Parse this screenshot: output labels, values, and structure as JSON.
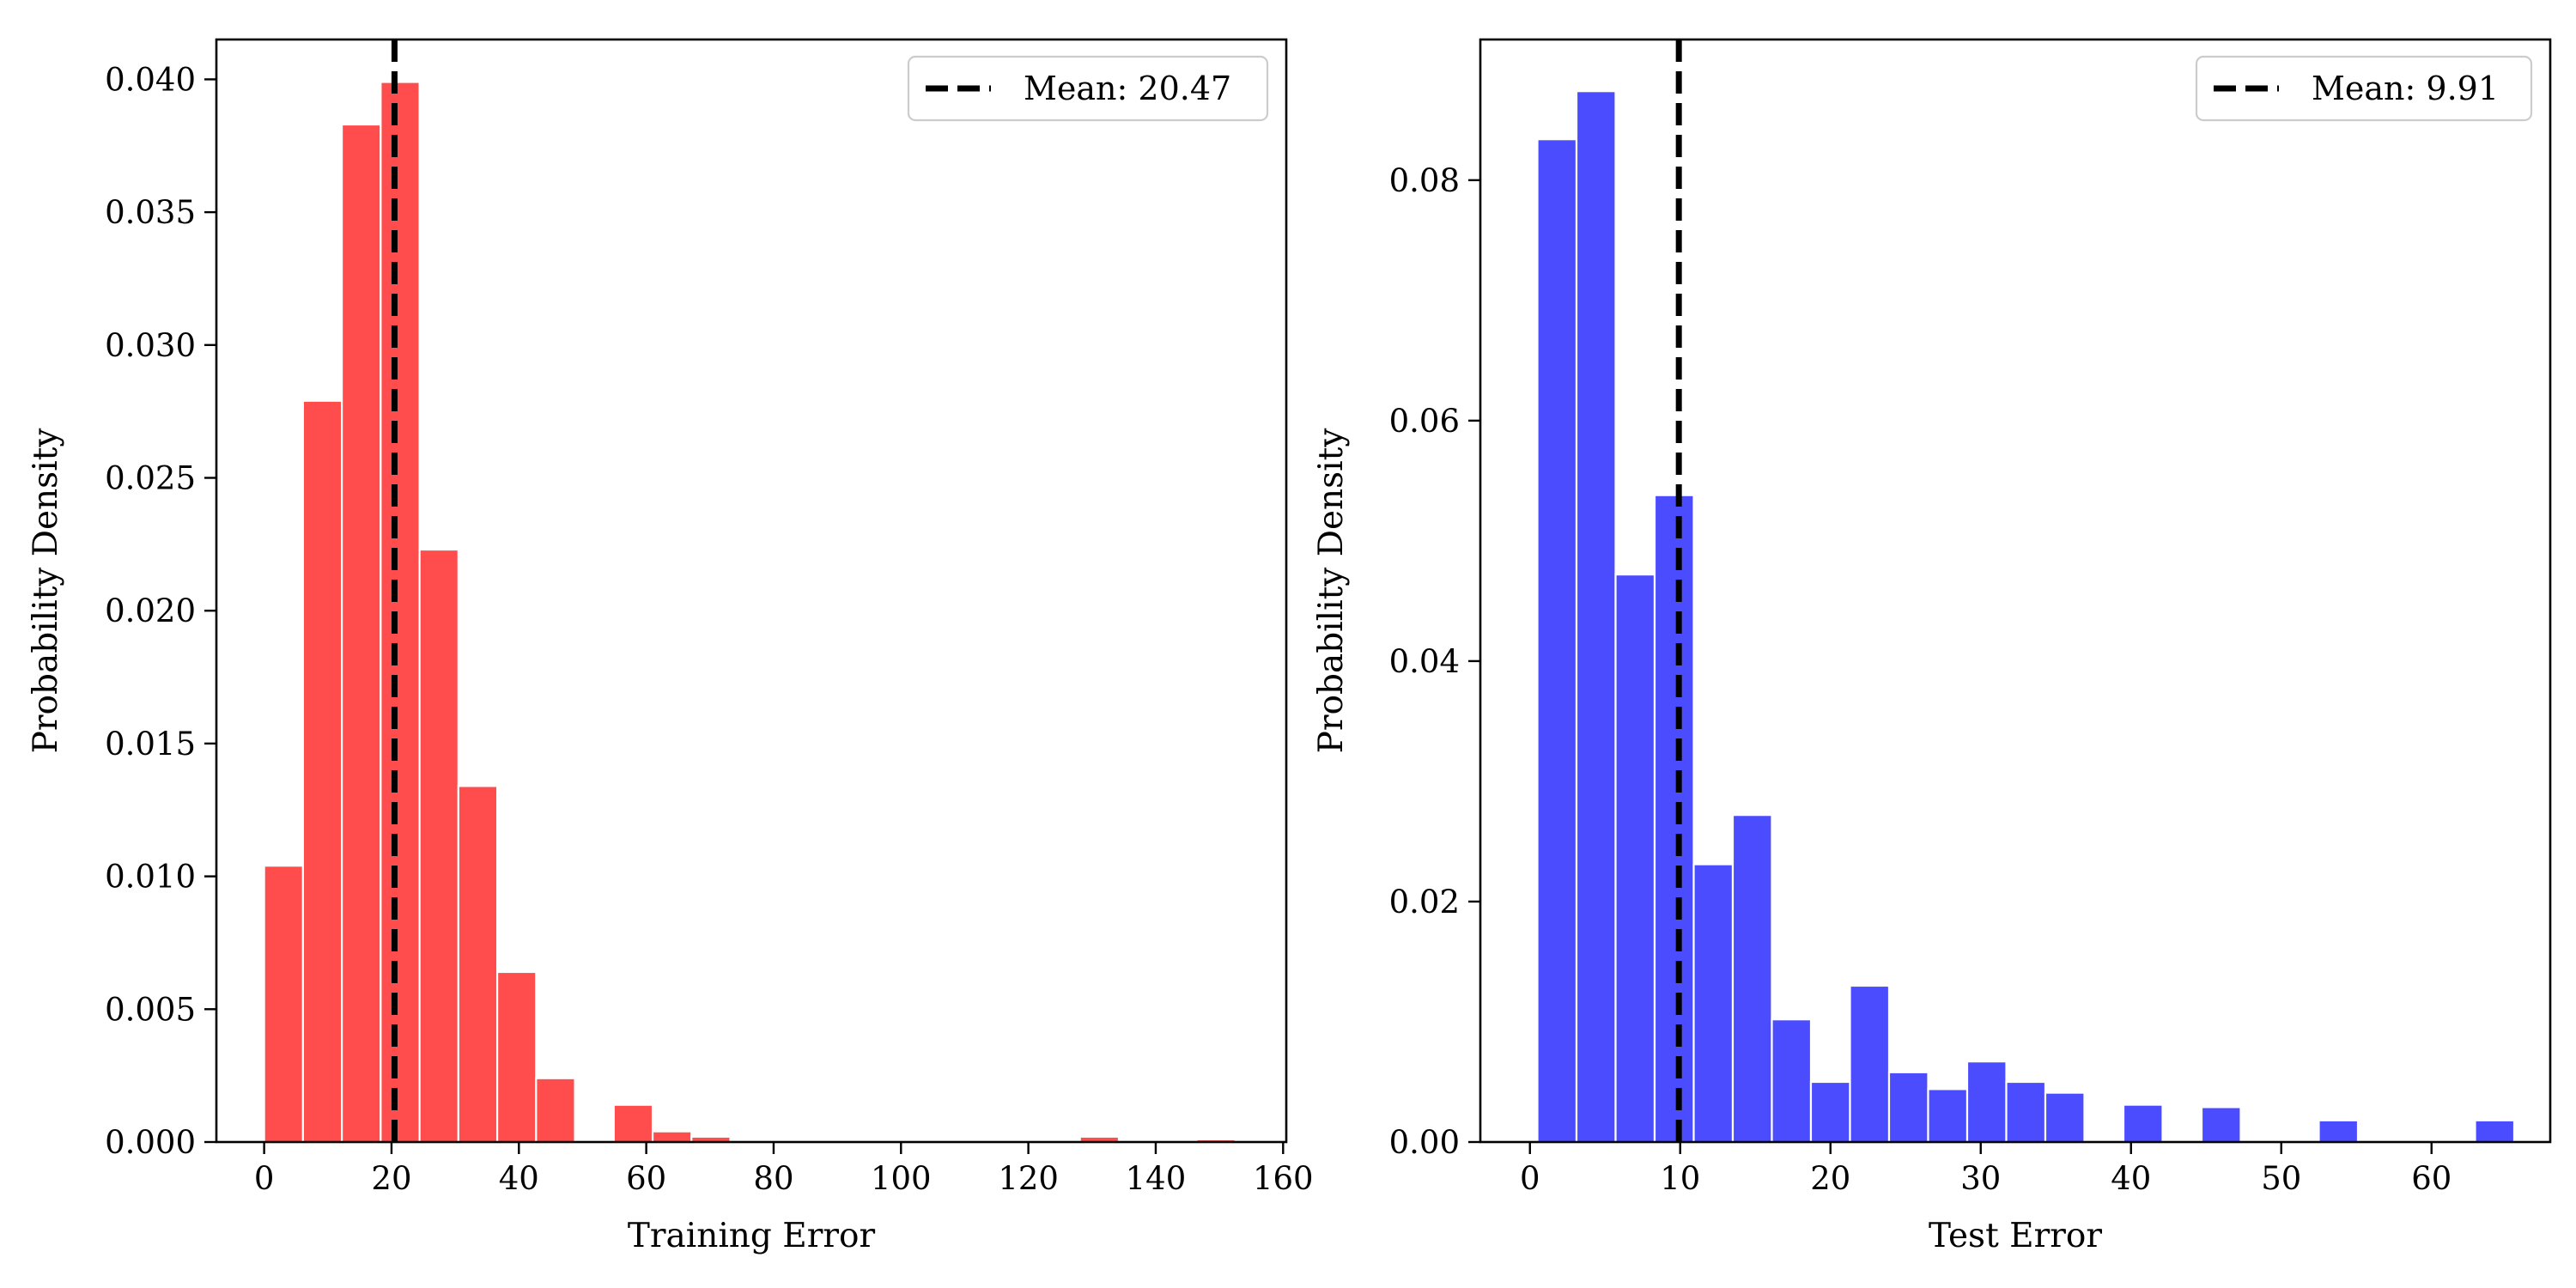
{
  "chart_data": [
    {
      "type": "bar",
      "chart_kind": "histogram",
      "color": "#ff4c4c",
      "xlabel": "Training Error",
      "ylabel": "Probability Density",
      "xlim": [
        -7.5,
        160.5
      ],
      "ylim": [
        0,
        0.0415
      ],
      "xticks": [
        0,
        20,
        40,
        60,
        80,
        100,
        120,
        140,
        160
      ],
      "yticks": [
        0.0,
        0.005,
        0.01,
        0.015,
        0.02,
        0.025,
        0.03,
        0.035,
        0.04
      ],
      "ytick_labels": [
        "0.000",
        "0.005",
        "0.010",
        "0.015",
        "0.020",
        "0.025",
        "0.030",
        "0.035",
        "0.040"
      ],
      "bin_start": 0,
      "bin_width": 6.1,
      "values": [
        0.0104,
        0.0279,
        0.0383,
        0.0399,
        0.0223,
        0.0134,
        0.0064,
        0.0024,
        0,
        0.0014,
        0.0004,
        0.0002,
        0,
        0,
        0,
        0,
        0,
        0,
        0,
        0,
        0,
        0.0002,
        0,
        0,
        0.0001
      ],
      "mean_line": {
        "x": 20.47,
        "label": "Mean: 20.47"
      },
      "legend": {
        "position": "top-right"
      }
    },
    {
      "type": "bar",
      "chart_kind": "histogram",
      "color": "#4c4cff",
      "xlabel": "Test Error",
      "ylabel": "Probability Density",
      "xlim": [
        -3.3,
        67.9
      ],
      "ylim": [
        0,
        0.0917
      ],
      "xticks": [
        0,
        10,
        20,
        30,
        40,
        50,
        60
      ],
      "yticks": [
        0.0,
        0.02,
        0.04,
        0.06,
        0.08
      ],
      "ytick_labels": [
        "0.00",
        "0.02",
        "0.04",
        "0.06",
        "0.08"
      ],
      "bin_start": 0.5,
      "bin_width": 2.6,
      "values": [
        0.0834,
        0.0874,
        0.0472,
        0.0538,
        0.0231,
        0.0272,
        0.0102,
        0.005,
        0.013,
        0.0058,
        0.0044,
        0.0067,
        0.005,
        0.0041,
        0,
        0.0031,
        0,
        0.0029,
        0,
        0,
        0.0018,
        0,
        0,
        0,
        0.0018
      ],
      "mean_line": {
        "x": 9.91,
        "label": "Mean: 9.91"
      },
      "legend": {
        "position": "top-right"
      }
    }
  ]
}
